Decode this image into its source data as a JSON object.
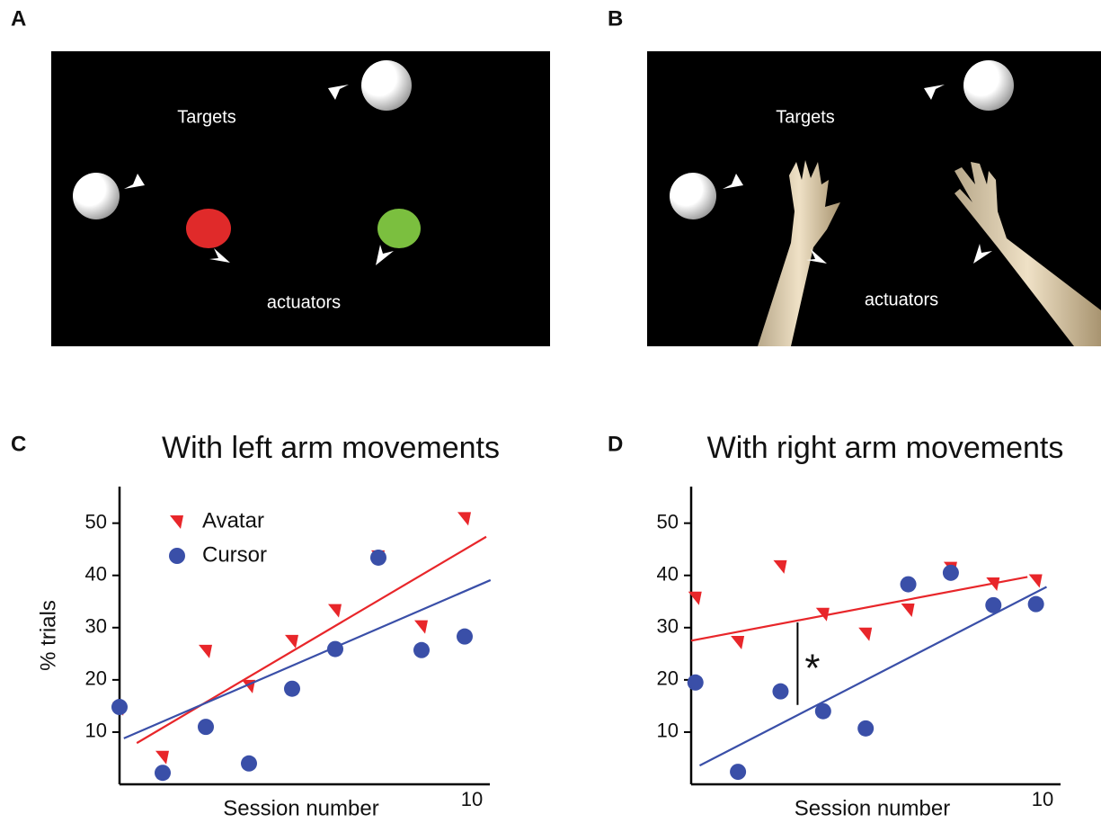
{
  "figure": {
    "panels": [
      {
        "letter": "A",
        "labels": [
          "Targets",
          "actuators"
        ]
      },
      {
        "letter": "B",
        "labels": [
          "Targets",
          "actuators"
        ]
      }
    ]
  },
  "chart_data": [
    {
      "type": "scatter",
      "panel_label": "C",
      "title": "With left arm movements",
      "x_label": "Session number",
      "y_label": "% trials",
      "xlim": [
        1,
        10
      ],
      "xticks": [
        10
      ],
      "ylim": [
        0,
        57
      ],
      "yticks": [
        10,
        20,
        30,
        40,
        50
      ],
      "grid": false,
      "legend": "upper left",
      "series": [
        {
          "name": "Avatar",
          "color": "#e8262a",
          "marker": "triangle",
          "x": [
            1,
            2,
            3,
            4,
            5,
            6,
            7,
            8,
            9
          ],
          "values": [
            14.5,
            5.2,
            25.5,
            18.8,
            27.4,
            33.3,
            43.6,
            30.2,
            50.9
          ]
        },
        {
          "name": "Cursor",
          "color": "#3a4fa8",
          "marker": "circle",
          "x": [
            1,
            2,
            3,
            4,
            5,
            6,
            7,
            8,
            9
          ],
          "values": [
            14.8,
            2.2,
            11,
            4,
            18.3,
            25.9,
            43.4,
            25.7,
            28.3
          ]
        },
        {
          "color": "#e8262a",
          "marker": "line",
          "x": [
            1.4,
            9.5
          ],
          "values": [
            7.9,
            47.4
          ]
        },
        {
          "color": "#3a4fa8",
          "marker": "line",
          "x": [
            1.1,
            9.6
          ],
          "values": [
            8.8,
            39.1
          ]
        }
      ]
    },
    {
      "type": "scatter",
      "panel_label": "D",
      "title": "With right arm movements",
      "x_label": "Session number",
      "xlim": [
        0.9,
        10
      ],
      "xticks": [
        10
      ],
      "ylim": [
        0,
        57
      ],
      "yticks": [
        10,
        20,
        30,
        40,
        50
      ],
      "grid": false,
      "series": [
        {
          "color": "#e8262a",
          "marker": "triangle",
          "x": [
            1,
            2,
            3,
            4,
            5,
            6,
            7,
            8,
            9
          ],
          "values": [
            35.7,
            27.2,
            41.7,
            32.6,
            28.8,
            33.4,
            41.4,
            38.4,
            39
          ]
        },
        {
          "color": "#3a4fa8",
          "marker": "circle",
          "x": [
            1,
            2,
            3,
            4,
            5,
            6,
            7,
            8,
            9
          ],
          "values": [
            19.5,
            2.4,
            17.8,
            14,
            10.7,
            38.3,
            40.5,
            34.3,
            34.5
          ]
        },
        {
          "color": "#e8262a",
          "marker": "line",
          "x": [
            0.9,
            8.8
          ],
          "values": [
            27.5,
            39.7
          ]
        },
        {
          "color": "#3a4fa8",
          "marker": "line",
          "x": [
            1.1,
            9.25
          ],
          "values": [
            3.6,
            37.8
          ]
        }
      ],
      "annotations": [
        {
          "text": "*",
          "x": 3.4,
          "range": [
            15.2,
            31
          ]
        }
      ]
    }
  ]
}
